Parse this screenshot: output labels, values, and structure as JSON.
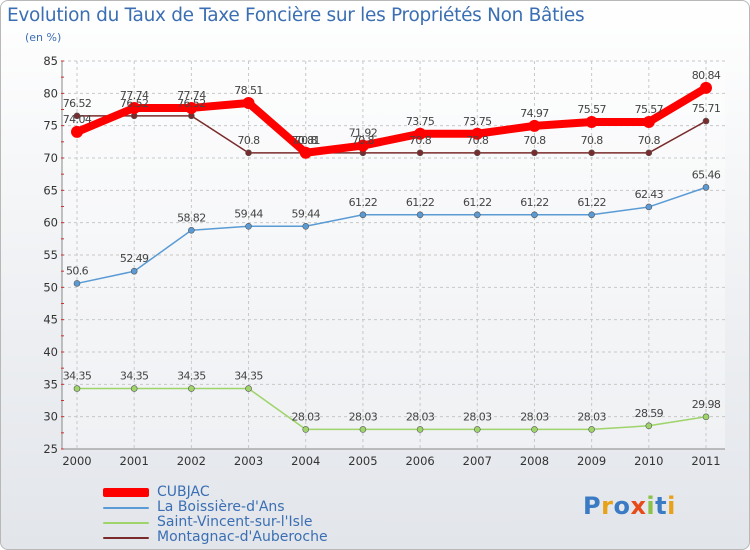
{
  "header": {
    "title": "Evolution du Taux de Taxe Foncière sur les Propriétés Non Bâties",
    "unit": "(en %)"
  },
  "logo": {
    "text": "Proxiti",
    "colors": [
      "#3b7bc4",
      "#e8a21a",
      "#3b7bc4",
      "#e84a1a",
      "#8bc34a",
      "#3b7bc4",
      "#e8a21a"
    ]
  },
  "chart_data": {
    "type": "line",
    "title": "Evolution du Taux de Taxe Foncière sur les Propriétés Non Bâties",
    "ylabel": "(en %)",
    "xlabel": "",
    "ylim": [
      25,
      85
    ],
    "yticks": [
      25,
      30,
      35,
      40,
      45,
      50,
      55,
      60,
      65,
      70,
      75,
      80,
      85
    ],
    "grid": true,
    "legend_position": "bottom-left",
    "categories": [
      "2000",
      "2001",
      "2002",
      "2003",
      "2004",
      "2005",
      "2006",
      "2007",
      "2008",
      "2009",
      "2010",
      "2011"
    ],
    "series": [
      {
        "name": "CUBJAC",
        "color": "#ff0000",
        "values": [
          74.04,
          77.74,
          77.74,
          78.51,
          70.81,
          71.92,
          73.75,
          73.75,
          74.97,
          75.57,
          75.57,
          80.84
        ],
        "labels": [
          "74.04",
          "77.74",
          "77.74",
          "78.51",
          "70.81",
          "71.92",
          "73.75",
          "73.75",
          "74.97",
          "75.57",
          "75.57",
          "80.84"
        ]
      },
      {
        "name": "La Boissière-d'Ans",
        "color": "#5a9bd5",
        "values": [
          50.6,
          52.49,
          58.82,
          59.44,
          59.44,
          61.22,
          61.22,
          61.22,
          61.22,
          61.22,
          62.43,
          65.46
        ],
        "labels": [
          "50.6",
          "52.49",
          "58.82",
          "59.44",
          "59.44",
          "61.22",
          "61.22",
          "61.22",
          "61.22",
          "61.22",
          "62.43",
          "65.46"
        ]
      },
      {
        "name": "Saint-Vincent-sur-l'Isle",
        "color": "#9ed46a",
        "values": [
          34.35,
          34.35,
          34.35,
          34.35,
          28.03,
          28.03,
          28.03,
          28.03,
          28.03,
          28.03,
          28.59,
          29.98
        ],
        "labels": [
          "34.35",
          "34.35",
          "34.35",
          "34.35",
          "28.03",
          "28.03",
          "28.03",
          "28.03",
          "28.03",
          "28.03",
          "28.59",
          "29.98"
        ]
      },
      {
        "name": "Montagnac-d'Auberoche",
        "color": "#7a2b2b",
        "values": [
          76.52,
          76.52,
          76.52,
          70.8,
          70.8,
          70.8,
          70.8,
          70.8,
          70.8,
          70.8,
          70.8,
          75.71
        ],
        "labels": [
          "76.52",
          "76.52",
          "76.52",
          "70.8",
          "70.8",
          "70.8",
          "70.8",
          "70.8",
          "70.8",
          "70.8",
          "70.8",
          "75.71"
        ]
      }
    ]
  }
}
